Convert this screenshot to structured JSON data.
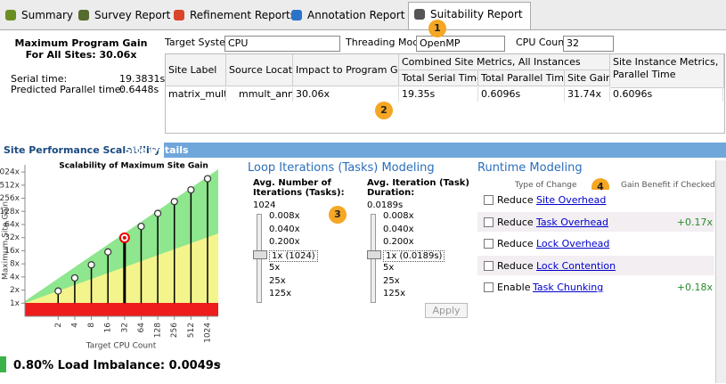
{
  "tabs": [
    "Summary",
    "Survey Report",
    "Refinement Reports",
    "Annotation Report",
    "Suitability Report"
  ],
  "summary": {
    "title": "Maximum Program Gain For All Sites: 30.06x",
    "rows": [
      [
        "Serial time:",
        "19.3831s"
      ],
      [
        "Predicted Parallel time:",
        "0.6448s"
      ]
    ]
  },
  "controls": [
    [
      "Target System:",
      "CPU"
    ],
    [
      "Threading Model:",
      "OpenMP"
    ],
    [
      "CPU Count:",
      "32"
    ]
  ],
  "markers": [
    "1",
    "2",
    "3",
    "4"
  ],
  "table": {
    "headers": [
      "Site Label",
      "Source Location",
      "Impact to Program Gain"
    ],
    "group": "Combined Site Metrics, All Instances",
    "group_headers": [
      "Total Serial Time",
      "Total Parallel Time",
      "Site Gain"
    ],
    "instance_header": "Site Instance Metrics, Parallel Time",
    "rows": [
      [
        "matrix_multi...",
        "mmult_ann ...",
        "30.06x",
        "19.35s",
        "0.6096s",
        "31.74x",
        "0.6096s"
      ]
    ]
  },
  "panel_tabs": [
    "Site Performance Scalability",
    "Site Details"
  ],
  "scalability": {
    "title": "Scalability of Maximum Site Gain",
    "y_label": "Maximum Site Gain",
    "x_label": "Target CPU Count",
    "log_scale": true,
    "x": [
      2,
      4,
      8,
      16,
      32,
      64,
      128,
      256,
      512,
      1024
    ],
    "values": [
      1.9,
      3.8,
      7.6,
      15,
      31.74,
      58,
      115,
      215,
      400,
      720
    ],
    "selected": 4,
    "xlim": [
      0.5,
      1600
    ],
    "ylim": [
      0.5,
      1500
    ],
    "xticks": [
      2,
      4,
      8,
      16,
      32,
      64,
      128,
      256,
      512,
      1024
    ],
    "yticks": [
      {
        "value": 1,
        "label": "1x"
      },
      {
        "value": 2,
        "label": "2x"
      },
      {
        "value": 4,
        "label": "4x"
      },
      {
        "value": 8,
        "label": "8x"
      },
      {
        "value": 16,
        "label": "16x"
      },
      {
        "value": 32,
        "label": "32x"
      },
      {
        "value": 64,
        "label": "64x"
      },
      {
        "value": 128,
        "label": "128x"
      },
      {
        "value": 256,
        "label": "256x"
      },
      {
        "value": 512,
        "label": "512x"
      },
      {
        "value": 1024,
        "label": "1024x"
      }
    ]
  },
  "loop": {
    "title": "Loop Iterations (Tasks) Modeling",
    "iterations": {
      "label": "Avg. Number of Iterations (Tasks):",
      "value": "1024",
      "options": [
        "0.008x",
        "0.040x",
        "0.200x",
        "1x (1024)",
        "5x",
        "25x",
        "125x"
      ]
    },
    "duration": {
      "label": "Avg. Iteration (Task) Duration:",
      "value": "0.0189s",
      "options": [
        "0.008x",
        "0.040x",
        "0.200x",
        "1x (0.0189s)",
        "5x",
        "25x",
        "125x"
      ]
    },
    "apply": "Apply"
  },
  "runtime": {
    "title": "Runtime Modeling",
    "headers": [
      "Type of Change",
      "Gain Benefit if Checked"
    ],
    "rows": [
      {
        "action": "Reduce",
        "link": "Site Overhead"
      },
      {
        "action": "Reduce",
        "link": "Task Overhead",
        "gain": "+0.17x"
      },
      {
        "action": "Reduce",
        "link": "Lock Overhead"
      },
      {
        "action": "Reduce",
        "link": "Lock Contention"
      },
      {
        "action": "Enable",
        "link": "Task Chunking",
        "gain": "+0.18x"
      }
    ]
  },
  "footer": "0.80% Load Imbalance: 0.0049s"
}
